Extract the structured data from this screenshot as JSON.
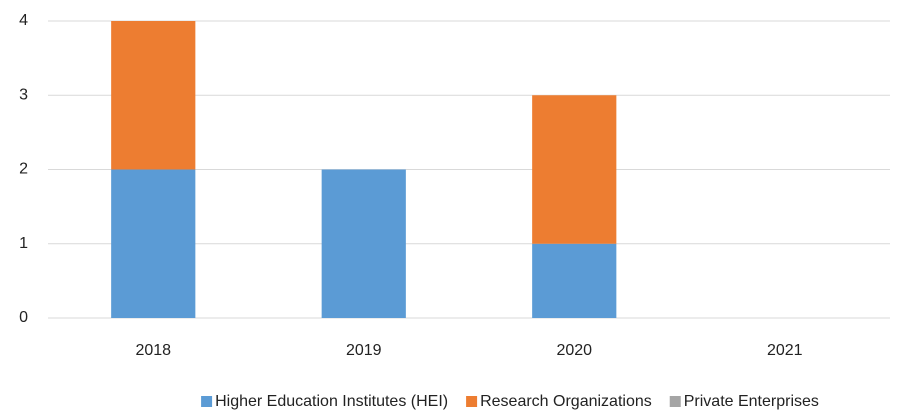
{
  "chart_data": {
    "type": "stacked_bar",
    "categories": [
      "2018",
      "2019",
      "2020",
      "2021"
    ],
    "series": [
      {
        "name": "Higher Education Institutes (HEI)",
        "color": "#5b9bd5",
        "values": [
          2,
          2,
          1,
          0
        ]
      },
      {
        "name": "Research Organizations",
        "color": "#ed7d31",
        "values": [
          2,
          0,
          2,
          0
        ]
      },
      {
        "name": "Private Enterprises",
        "color": "#a5a5a5",
        "values": [
          0,
          0,
          0,
          0
        ]
      }
    ],
    "ylim": [
      0,
      4
    ],
    "yticks": [
      0,
      1,
      2,
      3,
      4
    ],
    "grid": true,
    "legend": "bottom"
  }
}
